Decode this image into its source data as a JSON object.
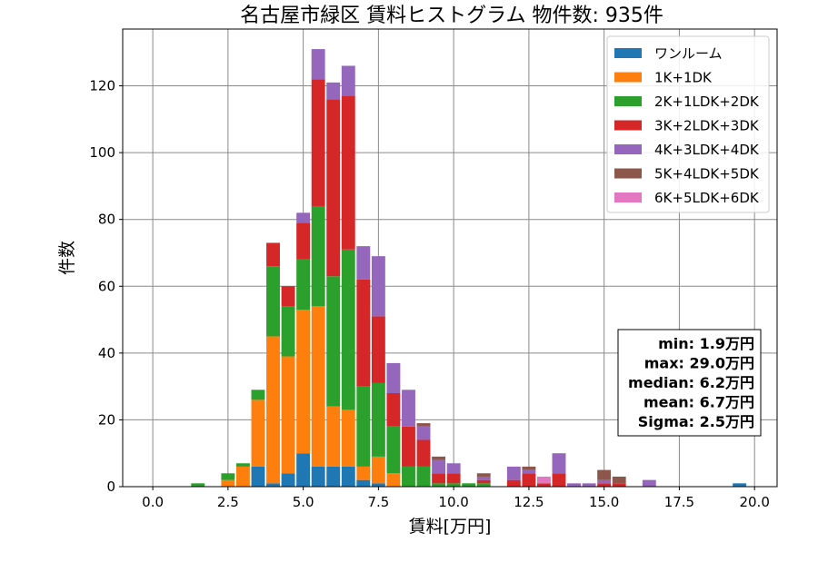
{
  "chart_data": {
    "type": "bar",
    "stacked": true,
    "title": "名古屋市緑区 賃料ヒストグラム 物件数: 935件",
    "xlabel": "賃料[万円]",
    "ylabel": "件数",
    "xlim": [
      -1.0,
      20.75
    ],
    "ylim": [
      0,
      137
    ],
    "xticks": [
      "0.0",
      "2.5",
      "5.0",
      "7.5",
      "10.0",
      "12.5",
      "15.0",
      "17.5",
      "20.0"
    ],
    "yticks": [
      "0",
      "20",
      "40",
      "60",
      "80",
      "100",
      "120"
    ],
    "grid": true,
    "legend_position": "top-right",
    "bin_width": 0.5,
    "x": [
      1.5,
      2.5,
      3.0,
      3.5,
      4.0,
      4.5,
      5.0,
      5.5,
      6.0,
      6.5,
      7.0,
      7.5,
      8.0,
      8.5,
      9.0,
      9.5,
      10.0,
      10.5,
      11.0,
      12.0,
      12.5,
      13.0,
      13.5,
      14.0,
      14.5,
      15.0,
      15.5,
      16.5,
      19.5
    ],
    "series": [
      {
        "name": "ワンルーム",
        "color": "#1f77b4",
        "values": [
          0,
          0,
          0,
          6,
          1,
          4,
          10,
          6,
          6,
          6,
          2,
          1,
          0,
          0,
          0,
          0,
          0,
          0,
          0,
          0,
          0,
          0,
          0,
          0,
          0,
          0,
          0,
          0,
          1
        ]
      },
      {
        "name": "1K+1DK",
        "color": "#ff7f0e",
        "values": [
          0,
          2,
          6,
          20,
          44,
          35,
          43,
          48,
          18,
          17,
          4,
          8,
          4,
          0,
          0,
          0,
          0,
          0,
          0,
          0,
          0,
          0,
          0,
          0,
          0,
          0,
          0,
          0,
          0
        ]
      },
      {
        "name": "2K+1LDK+2DK",
        "color": "#2ca02c",
        "values": [
          1,
          2,
          1,
          3,
          21,
          15,
          15,
          30,
          39,
          48,
          24,
          22,
          14,
          6,
          6,
          1,
          1,
          1,
          1,
          0,
          0,
          0,
          0,
          0,
          0,
          0,
          0,
          0,
          0
        ]
      },
      {
        "name": "3K+2LDK+3DK",
        "color": "#d62728",
        "values": [
          0,
          0,
          0,
          0,
          7,
          6,
          11,
          38,
          53,
          46,
          32,
          20,
          10,
          12,
          8,
          3,
          3,
          0,
          1,
          2,
          4,
          1,
          4,
          0,
          0,
          1,
          1,
          0,
          0
        ]
      },
      {
        "name": "4K+3LDK+4DK",
        "color": "#9467bd",
        "values": [
          0,
          0,
          0,
          0,
          0,
          0,
          3,
          9,
          5,
          9,
          10,
          18,
          9,
          11,
          4,
          4,
          3,
          0,
          1,
          4,
          1,
          0,
          6,
          1,
          1,
          1,
          0,
          2,
          0
        ]
      },
      {
        "name": "5K+4LDK+5DK",
        "color": "#8c564b",
        "values": [
          0,
          0,
          0,
          0,
          0,
          0,
          0,
          0,
          0,
          0,
          0,
          0,
          0,
          0,
          1,
          1,
          0,
          0,
          1,
          0,
          1,
          0,
          0,
          0,
          0,
          3,
          2,
          0,
          0
        ]
      },
      {
        "name": "6K+5LDK+6DK",
        "color": "#e377c2",
        "values": [
          0,
          0,
          0,
          0,
          0,
          0,
          0,
          0,
          0,
          0,
          0,
          0,
          0,
          0,
          0,
          0,
          0,
          0,
          0,
          0,
          0,
          2,
          0,
          0,
          0,
          0,
          0,
          0,
          0
        ]
      }
    ],
    "stats": [
      "min: 1.9万円",
      "max: 29.0万円",
      "median: 6.2万円",
      "mean: 6.7万円",
      "Sigma: 2.5万円"
    ]
  }
}
